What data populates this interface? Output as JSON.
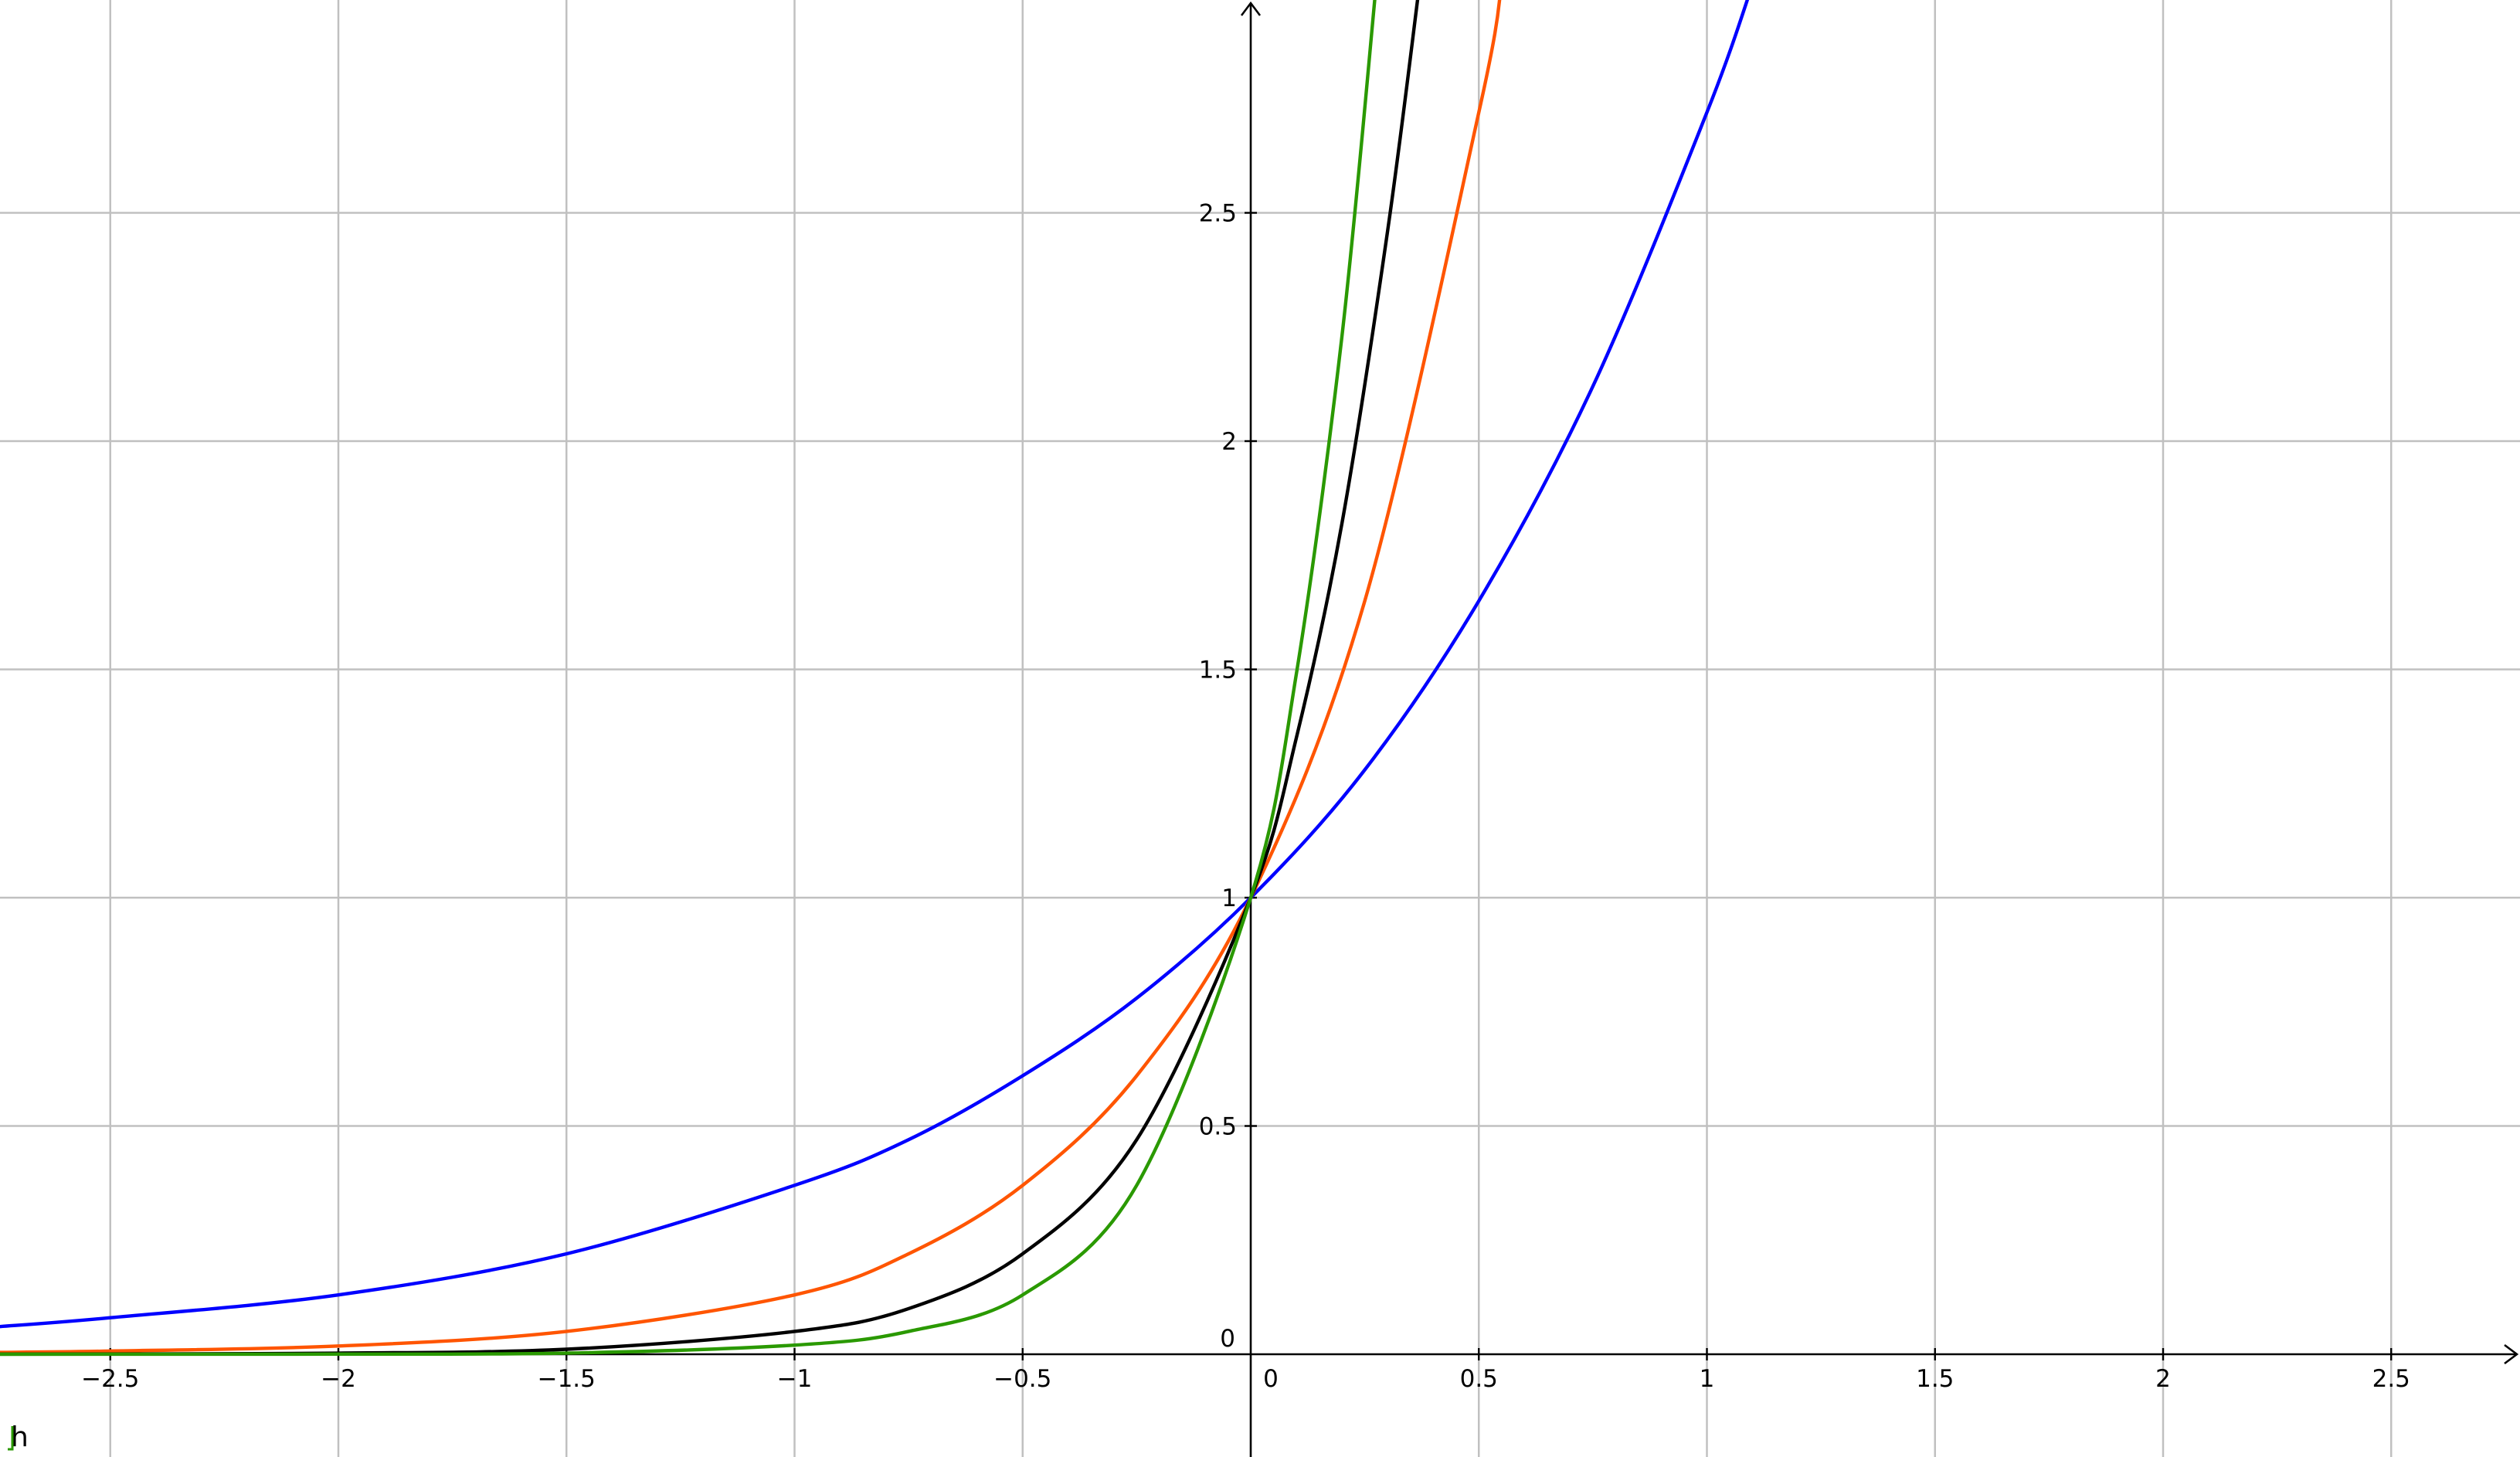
{
  "chart_data": {
    "type": "line",
    "title": "",
    "xlabel": "",
    "ylabel": "",
    "xlim": [
      -2.75,
      2.75
    ],
    "ylim": [
      -0.23,
      2.95
    ],
    "grid": true,
    "x_ticks": [
      -2.5,
      -2,
      -1.5,
      -1,
      -0.5,
      0.5,
      1,
      1.5,
      2,
      2.5
    ],
    "x_tick_labels": [
      "−2.5",
      "−2",
      "−1.5",
      "−1",
      "−0.5",
      "0.5",
      "1",
      "1.5",
      "2",
      "2.5"
    ],
    "y_ticks": [
      0.5,
      1,
      1.5,
      2,
      2.5
    ],
    "y_tick_labels": [
      "0.5",
      "1",
      "1.5",
      "2",
      "2.5"
    ],
    "origin_x_label": "0",
    "origin_y_label": "0",
    "corner_label": "h",
    "series": [
      {
        "color": "#0000ff",
        "x": [
          -2.75,
          -2.5,
          -2,
          -1.5,
          -1,
          -0.75,
          -0.5,
          -0.25,
          0,
          0.25,
          0.5,
          0.75,
          1,
          1.1
        ],
        "y": [
          0.06,
          0.08,
          0.13,
          0.22,
          0.37,
          0.47,
          0.61,
          0.78,
          1,
          1.28,
          1.65,
          2.12,
          2.72,
          3.0
        ]
      },
      {
        "color": "#ff5500",
        "x": [
          -2.75,
          -2.5,
          -2,
          -1.5,
          -1,
          -0.75,
          -0.5,
          -0.25,
          0,
          0.25,
          0.5,
          0.55
        ],
        "y": [
          0.004,
          0.007,
          0.018,
          0.05,
          0.13,
          0.22,
          0.37,
          0.61,
          1,
          1.65,
          2.72,
          3.0
        ]
      },
      {
        "color": "#000000",
        "x": [
          -2.75,
          -2.5,
          -2,
          -1.5,
          -1,
          -0.75,
          -0.5,
          -0.25,
          0,
          0.1,
          0.2,
          0.3,
          0.37
        ],
        "y": [
          0.0003,
          0.0006,
          0.0025,
          0.011,
          0.05,
          0.1,
          0.22,
          0.47,
          1,
          1.35,
          1.82,
          2.46,
          3.0
        ]
      },
      {
        "color": "#2a9900",
        "x": [
          -2.75,
          -2.5,
          -2,
          -1.5,
          -1,
          -0.75,
          -0.5,
          -0.25,
          0,
          0.1,
          0.2,
          0.275
        ],
        "y": [
          2e-05,
          5e-05,
          0.0003,
          0.0025,
          0.02,
          0.05,
          0.13,
          0.37,
          1,
          1.49,
          2.23,
          3.0
        ]
      }
    ]
  }
}
